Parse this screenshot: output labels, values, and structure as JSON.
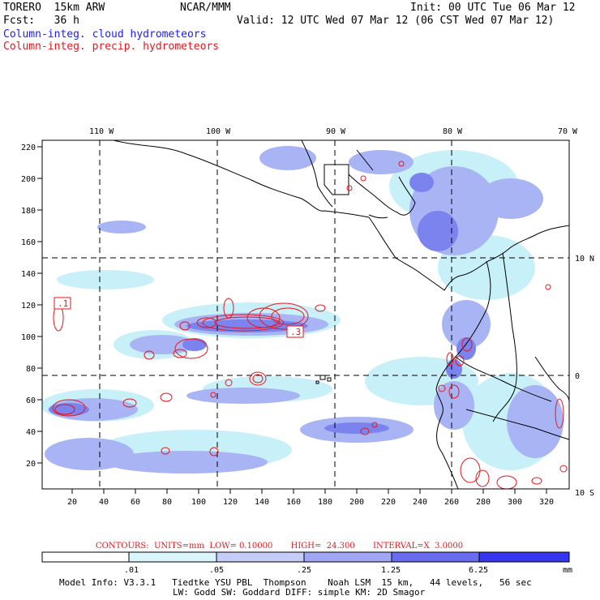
{
  "header": {
    "model": "TORERO  15km ARW",
    "center": "NCAR/MMM",
    "init": "Init: 00 UTC Tue 06 Mar 12",
    "fcst": "Fcst:   36 h",
    "valid": "Valid: 12 UTC Wed 07 Mar 12 (06 CST Wed 07 Mar 12)",
    "field_cloud": "Column-integ. cloud hydrometeors",
    "field_precip": "Column-integ. precip. hydrometeors"
  },
  "map": {
    "top_lon_labels": [
      "110 W",
      "100 W",
      "90 W",
      "80 W",
      "70 W"
    ],
    "right_lat_labels": [
      "10 N",
      "0",
      "10 S"
    ],
    "y_ticks": [
      "220",
      "200",
      "180",
      "160",
      "140",
      "120",
      "100",
      "80",
      "60",
      "40",
      "20"
    ],
    "x_ticks": [
      "20",
      "40",
      "60",
      "80",
      "100",
      "120",
      "140",
      "160",
      "180",
      "200",
      "220",
      "240",
      "260",
      "280",
      "300",
      "320"
    ],
    "contour_labels": [
      ".1",
      ".3"
    ],
    "colors": {
      "cloud_light": "#c8f0f8",
      "cloud_mid": "#a8b4f4",
      "cloud_dark": "#7b83ee",
      "precip_contour": "#e8161d",
      "coast": "#000000"
    }
  },
  "contours_info": "CONTOURS:  UNITS=mm  LOW= 0.10000       HIGH=  24.300       INTERVAL=X  3.0000",
  "colorbar": {
    "ticks": [
      ".01",
      ".05",
      ".25",
      "1.25",
      "6.25"
    ],
    "unit": "mm",
    "colors": [
      "#ffffff",
      "#d8f6fb",
      "#c4cdf7",
      "#a0a6f3",
      "#6a6cf0",
      "#3636ef",
      "#1010ee"
    ]
  },
  "footer": {
    "line1": "Model Info: V3.3.1   Tiedtke YSU PBL  Thompson    Noah LSM  15 km,   44 levels,   56 sec",
    "line2": "LW: Godd SW: Goddard DIFF: simple KM: 2D Smagor"
  }
}
